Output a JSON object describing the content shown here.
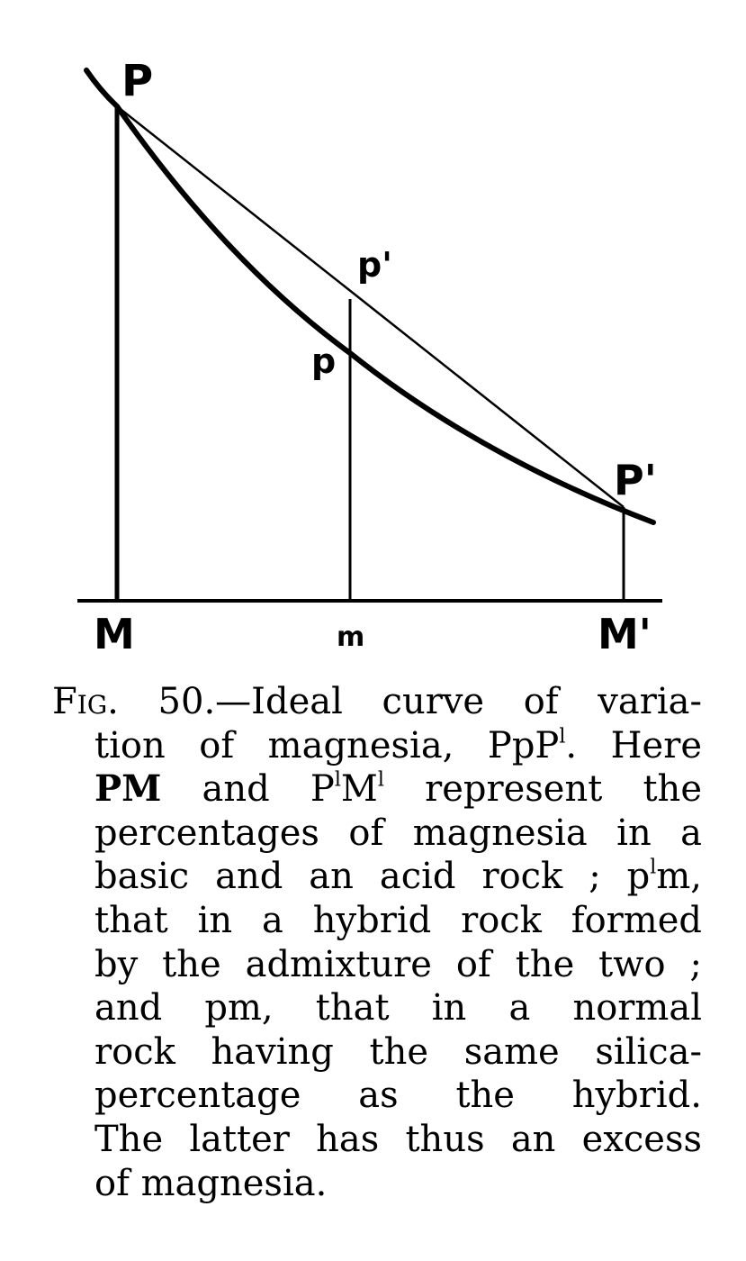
{
  "diagram": {
    "labels": {
      "P": "P",
      "p_prime": "p'",
      "p": "p",
      "P_prime": "P'",
      "M": "M",
      "m": "m",
      "M_prime": "M'"
    }
  },
  "caption": {
    "fig_label": "Fig. 50.",
    "dash": "—",
    "line1_text": "Ideal curve of varia-",
    "line2_a": "tion of magnesia, PpP",
    "line2_sup": "l",
    "line2_b": ". Here",
    "line3_pm": "PM",
    "line3_and": " and ",
    "line3_p": "P",
    "line3_sup1": "l",
    "line3_m": "M",
    "line3_sup2": "l",
    "line3_rest": " represent the",
    "line4": "percentages of magnesia in a",
    "line5_a": "basic and an acid rock ; p",
    "line5_sup": "l",
    "line5_b": "m,",
    "line6": "that in a hybrid rock formed",
    "line7": "by the admixture of the two ;",
    "line8": "and pm, that in a normal",
    "line9": "rock having the same silica-",
    "line10": "percentage as the hybrid.",
    "line11": "The latter has thus an excess",
    "line12": "of magnesia."
  }
}
